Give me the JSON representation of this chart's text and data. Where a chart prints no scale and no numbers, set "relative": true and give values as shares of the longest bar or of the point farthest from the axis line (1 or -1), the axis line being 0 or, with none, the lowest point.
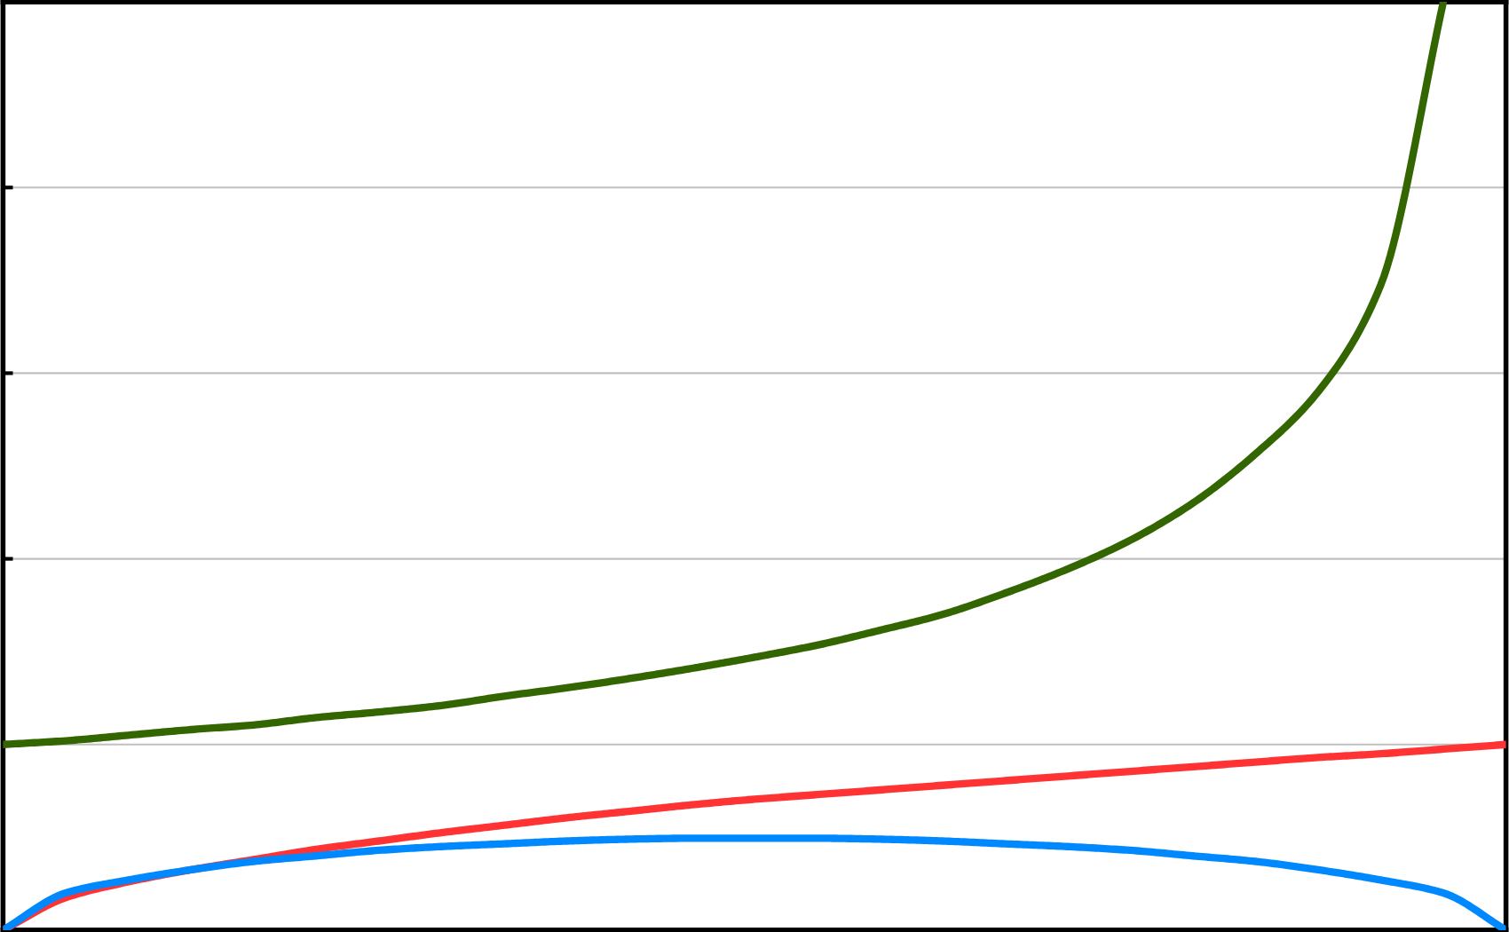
{
  "chart_data": {
    "type": "line",
    "relative": true,
    "categories": [
      null,
      null,
      null,
      null,
      null,
      null,
      null,
      null,
      null,
      null,
      null,
      null,
      null,
      null,
      null,
      null,
      null,
      null,
      null,
      null,
      null,
      null,
      null,
      null,
      null
    ],
    "grid": "y",
    "marker": "none",
    "line_style": "solid",
    "series": [
      {
        "color": "#336600",
        "values": [
          0.2,
          0.204,
          0.21,
          0.216,
          0.221,
          0.229,
          0.235,
          0.242,
          0.252,
          0.261,
          0.271,
          0.282,
          0.294,
          0.307,
          0.323,
          0.34,
          0.363,
          0.389,
          0.42,
          0.46,
          0.513,
          0.58,
          0.695,
          1.0,
          null
        ]
      },
      {
        "color": "#ff3333",
        "values": [
          0.0,
          0.035,
          0.052,
          0.065,
          0.076,
          0.087,
          0.096,
          0.105,
          0.113,
          0.121,
          0.128,
          0.135,
          0.141,
          0.146,
          0.151,
          0.156,
          0.161,
          0.166,
          0.171,
          0.176,
          0.181,
          0.186,
          0.19,
          0.195,
          0.2
        ]
      },
      {
        "color": "#0088ff",
        "values": [
          0.0,
          0.04,
          0.054,
          0.065,
          0.074,
          0.08,
          0.086,
          0.09,
          0.093,
          0.096,
          0.098,
          0.099,
          0.099,
          0.099,
          0.098,
          0.096,
          0.093,
          0.09,
          0.086,
          0.08,
          0.074,
          0.065,
          0.054,
          0.04,
          0.0
        ]
      }
    ]
  }
}
